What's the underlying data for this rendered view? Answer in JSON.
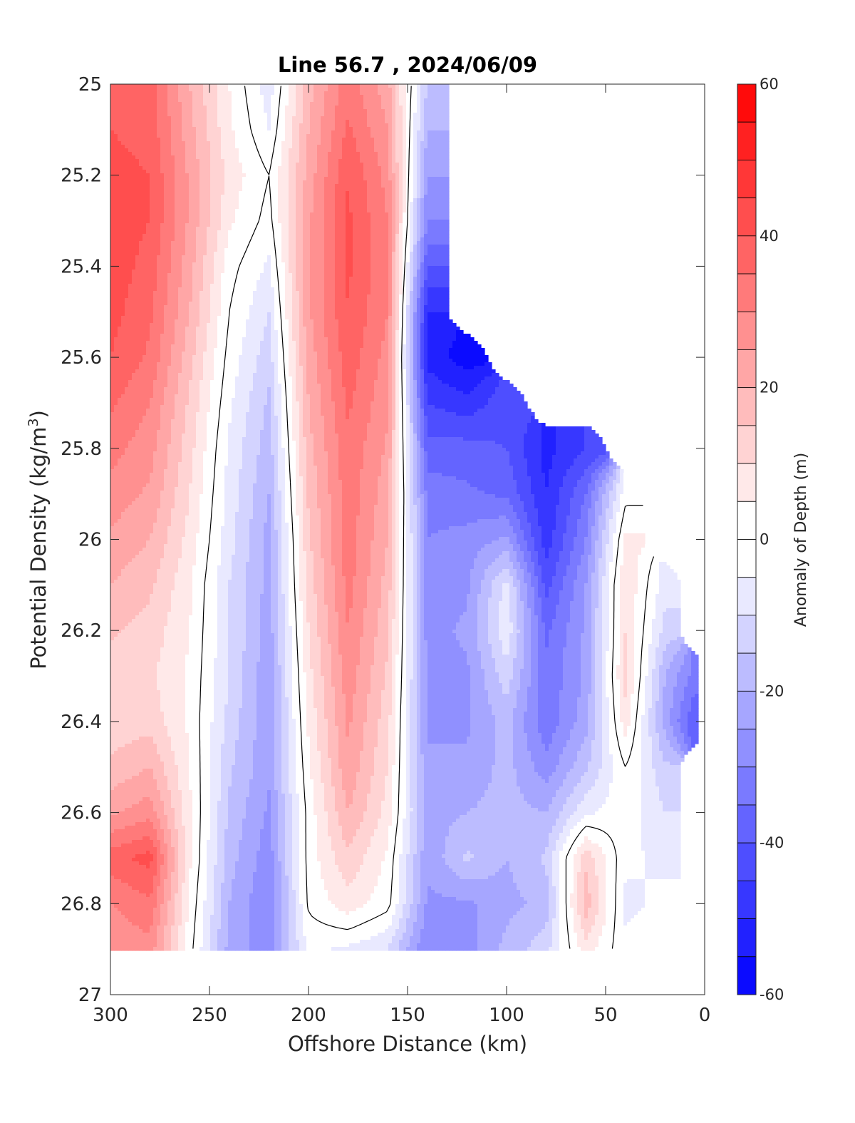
{
  "chart_data": {
    "type": "contour",
    "title": "Line 56.7 , 2024/06/09",
    "xlabel": "Offshore Distance (km)",
    "ylabel": "Potential Density (kg/m³)",
    "ylabel_parts": {
      "main": "Potential Density (kg/m",
      "sup": "3",
      "close": ")"
    },
    "colorbar_label": "Anomaly of Depth (m)",
    "xlim": [
      300,
      0
    ],
    "ylim": [
      25,
      27
    ],
    "x_reversed": true,
    "y_reversed": true,
    "x_ticks": [
      300,
      250,
      200,
      150,
      100,
      50,
      0
    ],
    "y_ticks": [
      25,
      25.2,
      25.4,
      25.6,
      25.8,
      26,
      26.2,
      26.4,
      26.6,
      26.8,
      27
    ],
    "y_tick_labels": [
      "25",
      "25.2",
      "25.4",
      "25.6",
      "25.8",
      "26",
      "26.2",
      "26.4",
      "26.6",
      "26.8",
      "27"
    ],
    "colorbar": {
      "range": [
        -60,
        60
      ],
      "step": 5,
      "ticks": [
        60,
        40,
        20,
        0,
        -20,
        -40,
        -60
      ],
      "colors": {
        "negative": "#0000ff",
        "zero": "#ffffff",
        "positive": "#ff0000"
      }
    },
    "x_stations": [
      300,
      280,
      260,
      240,
      220,
      200,
      180,
      160,
      140,
      120,
      100,
      80,
      60,
      40,
      20,
      5
    ],
    "y_levels": [
      25.0,
      25.1,
      25.2,
      25.3,
      25.4,
      25.5,
      25.6,
      25.7,
      25.8,
      25.9,
      26.0,
      26.1,
      26.2,
      26.3,
      26.4,
      26.5,
      26.6,
      26.7,
      26.8,
      26.9
    ],
    "anomaly_depth_m": [
      [
        38,
        38,
        20,
        5,
        -8,
        18,
        33,
        22,
        -15,
        null,
        null,
        null,
        null,
        null,
        null,
        null
      ],
      [
        40,
        38,
        22,
        6,
        -5,
        20,
        36,
        25,
        -20,
        null,
        null,
        null,
        null,
        null,
        null,
        null
      ],
      [
        42,
        40,
        24,
        8,
        0,
        22,
        40,
        28,
        -25,
        null,
        null,
        null,
        null,
        null,
        null,
        null
      ],
      [
        43,
        40,
        24,
        6,
        -2,
        24,
        41,
        30,
        -30,
        null,
        null,
        null,
        null,
        null,
        null,
        null
      ],
      [
        43,
        38,
        22,
        2,
        -6,
        24,
        41,
        30,
        -40,
        null,
        null,
        null,
        null,
        null,
        null,
        null
      ],
      [
        42,
        36,
        20,
        0,
        -10,
        24,
        40,
        30,
        -50,
        null,
        null,
        null,
        null,
        null,
        null,
        null
      ],
      [
        40,
        34,
        17,
        -2,
        -13,
        22,
        38,
        28,
        -52,
        -58,
        null,
        null,
        null,
        null,
        null,
        null
      ],
      [
        36,
        30,
        14,
        -4,
        -16,
        20,
        36,
        26,
        -45,
        -48,
        -42,
        null,
        null,
        null,
        null,
        null
      ],
      [
        32,
        27,
        12,
        -6,
        -18,
        18,
        34,
        24,
        -38,
        -38,
        -40,
        -52,
        -45,
        null,
        null,
        null
      ],
      [
        28,
        24,
        10,
        -7,
        -20,
        16,
        33,
        22,
        -32,
        -34,
        -36,
        -50,
        -35,
        -2,
        null,
        null
      ],
      [
        24,
        20,
        8,
        -8,
        -22,
        14,
        33,
        20,
        -30,
        -28,
        -24,
        -48,
        -30,
        6,
        null,
        null
      ],
      [
        20,
        16,
        6,
        -10,
        -22,
        12,
        32,
        18,
        -28,
        -26,
        -8,
        -42,
        -25,
        10,
        -8,
        null
      ],
      [
        16,
        13,
        5,
        -10,
        -23,
        10,
        30,
        16,
        -27,
        -24,
        -6,
        -36,
        -24,
        10,
        -12,
        null
      ],
      [
        12,
        11,
        4,
        -10,
        -24,
        8,
        28,
        14,
        -26,
        -26,
        -12,
        -34,
        -24,
        12,
        -20,
        -32
      ],
      [
        12,
        13,
        4,
        -12,
        -24,
        6,
        26,
        12,
        -26,
        -26,
        -18,
        -34,
        -22,
        8,
        -22,
        -40
      ],
      [
        16,
        20,
        5,
        -14,
        -24,
        4,
        24,
        10,
        -24,
        -24,
        -18,
        -28,
        -16,
        0,
        -14,
        null
      ],
      [
        24,
        28,
        6,
        -16,
        -26,
        2,
        20,
        8,
        -22,
        -20,
        -18,
        -20,
        -6,
        -2,
        -10,
        null
      ],
      [
        38,
        42,
        6,
        -18,
        -28,
        2,
        14,
        4,
        -24,
        -14,
        -20,
        -14,
        14,
        -4,
        -6,
        null
      ],
      [
        30,
        34,
        4,
        -20,
        -30,
        1,
        8,
        2,
        -26,
        -26,
        -22,
        -18,
        18,
        -6,
        -4,
        null
      ],
      [
        26,
        28,
        2,
        -22,
        -28,
        -4,
        -6,
        -10,
        -30,
        -28,
        -18,
        -12,
        8,
        -4,
        -2,
        null
      ]
    ]
  }
}
